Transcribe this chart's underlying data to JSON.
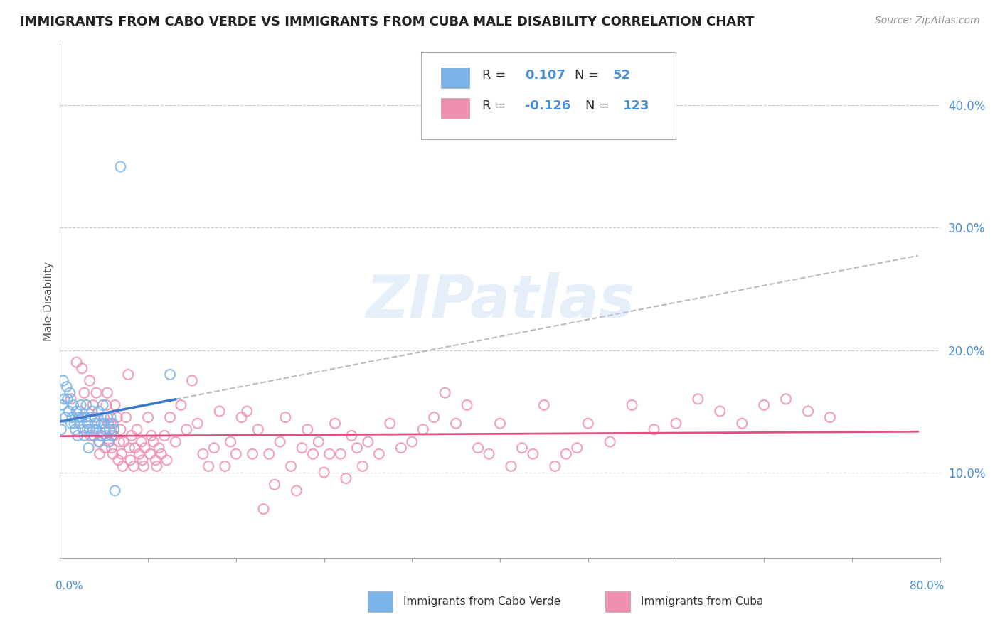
{
  "title": "IMMIGRANTS FROM CABO VERDE VS IMMIGRANTS FROM CUBA MALE DISABILITY CORRELATION CHART",
  "source": "Source: ZipAtlas.com",
  "ylabel": "Male Disability",
  "y_ticks": [
    0.1,
    0.2,
    0.3,
    0.4
  ],
  "y_tick_labels": [
    "10.0%",
    "20.0%",
    "30.0%",
    "40.0%"
  ],
  "xlim": [
    0.0,
    0.8
  ],
  "ylim": [
    0.03,
    0.45
  ],
  "cabo_verde_R": 0.107,
  "cabo_verde_N": 52,
  "cuba_R": -0.126,
  "cuba_N": 123,
  "cabo_verde_color": "#7ab4e8",
  "cuba_color": "#f090b0",
  "cabo_verde_line_color": "#3a78c9",
  "cuba_line_color": "#e05080",
  "cabo_verde_points": [
    [
      0.001,
      0.135
    ],
    [
      0.002,
      0.155
    ],
    [
      0.003,
      0.175
    ],
    [
      0.004,
      0.16
    ],
    [
      0.005,
      0.145
    ],
    [
      0.006,
      0.17
    ],
    [
      0.007,
      0.16
    ],
    [
      0.008,
      0.15
    ],
    [
      0.009,
      0.165
    ],
    [
      0.01,
      0.14
    ],
    [
      0.011,
      0.145
    ],
    [
      0.012,
      0.155
    ],
    [
      0.013,
      0.14
    ],
    [
      0.014,
      0.135
    ],
    [
      0.015,
      0.15
    ],
    [
      0.016,
      0.13
    ],
    [
      0.017,
      0.145
    ],
    [
      0.018,
      0.14
    ],
    [
      0.019,
      0.155
    ],
    [
      0.02,
      0.145
    ],
    [
      0.021,
      0.135
    ],
    [
      0.022,
      0.13
    ],
    [
      0.023,
      0.145
    ],
    [
      0.024,
      0.155
    ],
    [
      0.025,
      0.14
    ],
    [
      0.026,
      0.12
    ],
    [
      0.027,
      0.135
    ],
    [
      0.028,
      0.145
    ],
    [
      0.029,
      0.15
    ],
    [
      0.03,
      0.135
    ],
    [
      0.031,
      0.13
    ],
    [
      0.032,
      0.14
    ],
    [
      0.033,
      0.135
    ],
    [
      0.034,
      0.14
    ],
    [
      0.035,
      0.15
    ],
    [
      0.036,
      0.125
    ],
    [
      0.037,
      0.13
    ],
    [
      0.038,
      0.14
    ],
    [
      0.039,
      0.155
    ],
    [
      0.04,
      0.14
    ],
    [
      0.041,
      0.135
    ],
    [
      0.042,
      0.13
    ],
    [
      0.043,
      0.145
    ],
    [
      0.044,
      0.125
    ],
    [
      0.045,
      0.135
    ],
    [
      0.046,
      0.145
    ],
    [
      0.047,
      0.13
    ],
    [
      0.048,
      0.14
    ],
    [
      0.049,
      0.135
    ],
    [
      0.05,
      0.085
    ],
    [
      0.055,
      0.35
    ],
    [
      0.1,
      0.18
    ]
  ],
  "cuba_points": [
    [
      0.01,
      0.16
    ],
    [
      0.015,
      0.19
    ],
    [
      0.018,
      0.15
    ],
    [
      0.02,
      0.185
    ],
    [
      0.022,
      0.165
    ],
    [
      0.025,
      0.135
    ],
    [
      0.027,
      0.175
    ],
    [
      0.028,
      0.13
    ],
    [
      0.03,
      0.155
    ],
    [
      0.032,
      0.145
    ],
    [
      0.033,
      0.165
    ],
    [
      0.035,
      0.125
    ],
    [
      0.036,
      0.115
    ],
    [
      0.038,
      0.13
    ],
    [
      0.04,
      0.145
    ],
    [
      0.041,
      0.12
    ],
    [
      0.042,
      0.155
    ],
    [
      0.043,
      0.165
    ],
    [
      0.044,
      0.14
    ],
    [
      0.045,
      0.125
    ],
    [
      0.046,
      0.14
    ],
    [
      0.047,
      0.12
    ],
    [
      0.048,
      0.115
    ],
    [
      0.049,
      0.13
    ],
    [
      0.05,
      0.155
    ],
    [
      0.052,
      0.145
    ],
    [
      0.053,
      0.11
    ],
    [
      0.054,
      0.125
    ],
    [
      0.055,
      0.135
    ],
    [
      0.056,
      0.115
    ],
    [
      0.057,
      0.105
    ],
    [
      0.058,
      0.125
    ],
    [
      0.06,
      0.145
    ],
    [
      0.062,
      0.18
    ],
    [
      0.063,
      0.12
    ],
    [
      0.064,
      0.11
    ],
    [
      0.065,
      0.13
    ],
    [
      0.067,
      0.105
    ],
    [
      0.068,
      0.12
    ],
    [
      0.07,
      0.135
    ],
    [
      0.072,
      0.115
    ],
    [
      0.074,
      0.125
    ],
    [
      0.075,
      0.11
    ],
    [
      0.076,
      0.105
    ],
    [
      0.077,
      0.12
    ],
    [
      0.08,
      0.145
    ],
    [
      0.082,
      0.115
    ],
    [
      0.083,
      0.13
    ],
    [
      0.085,
      0.125
    ],
    [
      0.087,
      0.11
    ],
    [
      0.088,
      0.105
    ],
    [
      0.09,
      0.12
    ],
    [
      0.092,
      0.115
    ],
    [
      0.095,
      0.13
    ],
    [
      0.097,
      0.11
    ],
    [
      0.1,
      0.145
    ],
    [
      0.105,
      0.125
    ],
    [
      0.11,
      0.155
    ],
    [
      0.115,
      0.135
    ],
    [
      0.12,
      0.175
    ],
    [
      0.125,
      0.14
    ],
    [
      0.13,
      0.115
    ],
    [
      0.135,
      0.105
    ],
    [
      0.14,
      0.12
    ],
    [
      0.145,
      0.15
    ],
    [
      0.15,
      0.105
    ],
    [
      0.155,
      0.125
    ],
    [
      0.16,
      0.115
    ],
    [
      0.165,
      0.145
    ],
    [
      0.17,
      0.15
    ],
    [
      0.175,
      0.115
    ],
    [
      0.18,
      0.135
    ],
    [
      0.185,
      0.07
    ],
    [
      0.19,
      0.115
    ],
    [
      0.195,
      0.09
    ],
    [
      0.2,
      0.125
    ],
    [
      0.205,
      0.145
    ],
    [
      0.21,
      0.105
    ],
    [
      0.215,
      0.085
    ],
    [
      0.22,
      0.12
    ],
    [
      0.225,
      0.135
    ],
    [
      0.23,
      0.115
    ],
    [
      0.235,
      0.125
    ],
    [
      0.24,
      0.1
    ],
    [
      0.245,
      0.115
    ],
    [
      0.25,
      0.14
    ],
    [
      0.255,
      0.115
    ],
    [
      0.26,
      0.095
    ],
    [
      0.265,
      0.13
    ],
    [
      0.27,
      0.12
    ],
    [
      0.275,
      0.105
    ],
    [
      0.28,
      0.125
    ],
    [
      0.29,
      0.115
    ],
    [
      0.3,
      0.14
    ],
    [
      0.31,
      0.12
    ],
    [
      0.32,
      0.125
    ],
    [
      0.33,
      0.135
    ],
    [
      0.34,
      0.145
    ],
    [
      0.35,
      0.165
    ],
    [
      0.36,
      0.14
    ],
    [
      0.37,
      0.155
    ],
    [
      0.38,
      0.12
    ],
    [
      0.39,
      0.115
    ],
    [
      0.4,
      0.14
    ],
    [
      0.41,
      0.105
    ],
    [
      0.42,
      0.12
    ],
    [
      0.43,
      0.115
    ],
    [
      0.44,
      0.155
    ],
    [
      0.45,
      0.105
    ],
    [
      0.46,
      0.115
    ],
    [
      0.47,
      0.12
    ],
    [
      0.48,
      0.14
    ],
    [
      0.5,
      0.125
    ],
    [
      0.52,
      0.155
    ],
    [
      0.54,
      0.135
    ],
    [
      0.56,
      0.14
    ],
    [
      0.58,
      0.16
    ],
    [
      0.6,
      0.15
    ],
    [
      0.62,
      0.14
    ],
    [
      0.64,
      0.155
    ],
    [
      0.66,
      0.16
    ],
    [
      0.68,
      0.15
    ],
    [
      0.7,
      0.145
    ]
  ]
}
